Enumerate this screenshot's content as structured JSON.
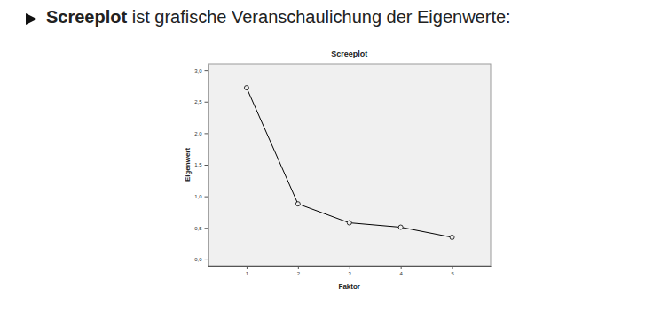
{
  "slide": {
    "heading": {
      "bold": "Screeplot",
      "text": "ist grafische Veranschaulichung der Eigenwerte:"
    }
  },
  "chart_data": {
    "type": "line",
    "title": "Screeplot",
    "x_label": "Faktor",
    "y_label": "Eigenwert",
    "x": [
      1,
      2,
      3,
      4,
      5
    ],
    "values": [
      2.72,
      0.88,
      0.58,
      0.51,
      0.35
    ],
    "color": "#000000",
    "marker": "circle",
    "xlim": [
      0.25,
      5.75
    ],
    "xticks": [
      1,
      2,
      3,
      4,
      5
    ],
    "ylim": [
      -0.1,
      3.1
    ],
    "yticks": [
      {
        "value": 0,
        "label": "0,0"
      },
      {
        "value": 0.5,
        "label": "0,5"
      },
      {
        "value": 1,
        "label": "1,0"
      },
      {
        "value": 1.5,
        "label": "1,5"
      },
      {
        "value": 2,
        "label": "2,0"
      },
      {
        "value": 2.5,
        "label": "2,5"
      },
      {
        "value": 3,
        "label": "3,0"
      }
    ],
    "grid": false
  }
}
